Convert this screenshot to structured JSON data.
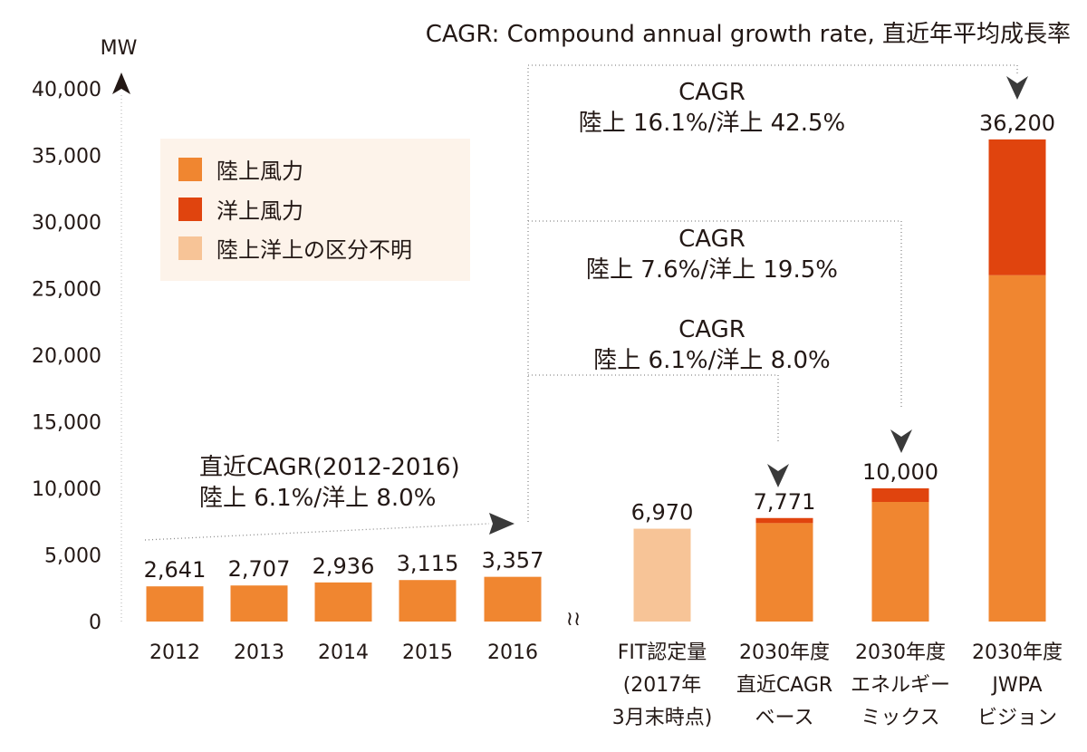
{
  "chart_data": {
    "type": "bar",
    "title": "",
    "note": "CAGR: Compound annual growth rate, 直近年平均成長率",
    "ylabel": "MW",
    "xlabel": "",
    "ylim": [
      0,
      40000
    ],
    "yticks": [
      {
        "value": 0,
        "label": "0"
      },
      {
        "value": 5000,
        "label": "5,000"
      },
      {
        "value": 10000,
        "label": "10,000"
      },
      {
        "value": 15000,
        "label": "15,000"
      },
      {
        "value": 20000,
        "label": "20,000"
      },
      {
        "value": 25000,
        "label": "25,000"
      },
      {
        "value": 30000,
        "label": "30,000"
      },
      {
        "value": 35000,
        "label": "35,000"
      },
      {
        "value": 40000,
        "label": "40,000"
      }
    ],
    "legend_position": "top-left",
    "colors": {
      "onshore": "#F08630",
      "offshore": "#E0440E",
      "unclassified": "#F7C497",
      "legend_bg": "#FDF3EA",
      "text": "#231815"
    },
    "series": [
      {
        "key": "onshore",
        "name": "陸上風力"
      },
      {
        "key": "offshore",
        "name": "洋上風力"
      },
      {
        "key": "unclassified",
        "name": "陸上洋上の区分不明"
      }
    ],
    "categories": [
      {
        "lines": [
          "2012"
        ],
        "total_label": "2,641",
        "onshore": 2641,
        "offshore": 0,
        "unclassified": 0
      },
      {
        "lines": [
          "2013"
        ],
        "total_label": "2,707",
        "onshore": 2707,
        "offshore": 0,
        "unclassified": 0
      },
      {
        "lines": [
          "2014"
        ],
        "total_label": "2,936",
        "onshore": 2936,
        "offshore": 0,
        "unclassified": 0
      },
      {
        "lines": [
          "2015"
        ],
        "total_label": "3,115",
        "onshore": 3115,
        "offshore": 0,
        "unclassified": 0
      },
      {
        "lines": [
          "2016"
        ],
        "total_label": "3,357",
        "onshore": 3357,
        "offshore": 0,
        "unclassified": 0
      },
      {
        "lines": [
          "FIT認定量",
          "(2017年",
          "3月末時点)"
        ],
        "total_label": "6,970",
        "onshore": 0,
        "offshore": 0,
        "unclassified": 6970
      },
      {
        "lines": [
          "2030年度",
          "直近CAGR",
          "ベース"
        ],
        "total_label": "7,771",
        "onshore": 7390,
        "offshore": 381,
        "unclassified": 0
      },
      {
        "lines": [
          "2030年度",
          "エネルギー",
          "ミックス"
        ],
        "total_label": "10,000",
        "onshore": 8980,
        "offshore": 1020,
        "unclassified": 0
      },
      {
        "lines": [
          "2030年度",
          "JWPA",
          "ビジョン"
        ],
        "total_label": "36,200",
        "onshore": 26000,
        "offshore": 10200,
        "unclassified": 0
      }
    ],
    "annotations": [
      {
        "lines": [
          "直近CAGR(2012-2016)",
          "陸上 6.1%/洋上 8.0%"
        ]
      },
      {
        "lines": [
          "CAGR",
          "陸上 6.1%/洋上 8.0%"
        ]
      },
      {
        "lines": [
          "CAGR",
          "陸上 7.6%/洋上 19.5%"
        ]
      },
      {
        "lines": [
          "CAGR",
          "陸上 16.1%/洋上 42.5%"
        ]
      }
    ],
    "axis_break": "≀≀"
  }
}
